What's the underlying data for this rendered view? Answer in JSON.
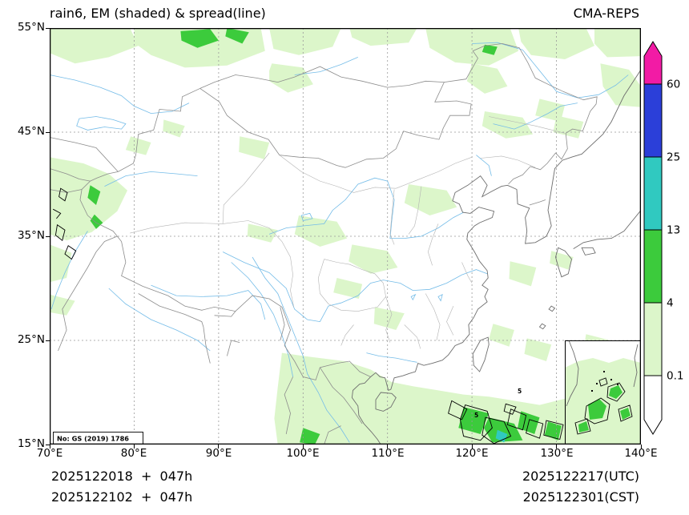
{
  "header": {
    "title": "rain6, EM (shaded) & spread(line)",
    "model": "CMA-REPS"
  },
  "axes": {
    "lat_ticks": [
      "55°N",
      "45°N",
      "35°N",
      "25°N",
      "15°N"
    ],
    "lon_ticks": [
      "70°E",
      "80°E",
      "90°E",
      "100°E",
      "110°E",
      "120°E",
      "130°E",
      "140°E"
    ]
  },
  "colorbar": {
    "labels": {
      "l60": "60",
      "l25": "25",
      "l13": "13",
      "l4": "4",
      "l01": "0.1"
    },
    "colors": {
      "extreme": "#F21BA5",
      "vhigh": "#2B3FD9",
      "high": "#30C9C0",
      "mid": "#3CCB3C",
      "low": "#DCF6CA",
      "none": "#FFFFFF"
    }
  },
  "map": {
    "license": "No: GS (2019) 1786",
    "contour_label": "5"
  },
  "footer": {
    "run_utc": "2025122018  +  047h",
    "run_cst": "2025122102  +  047h",
    "valid_utc": "2025122217(UTC)",
    "valid_cst": "2025122301(CST)"
  }
}
